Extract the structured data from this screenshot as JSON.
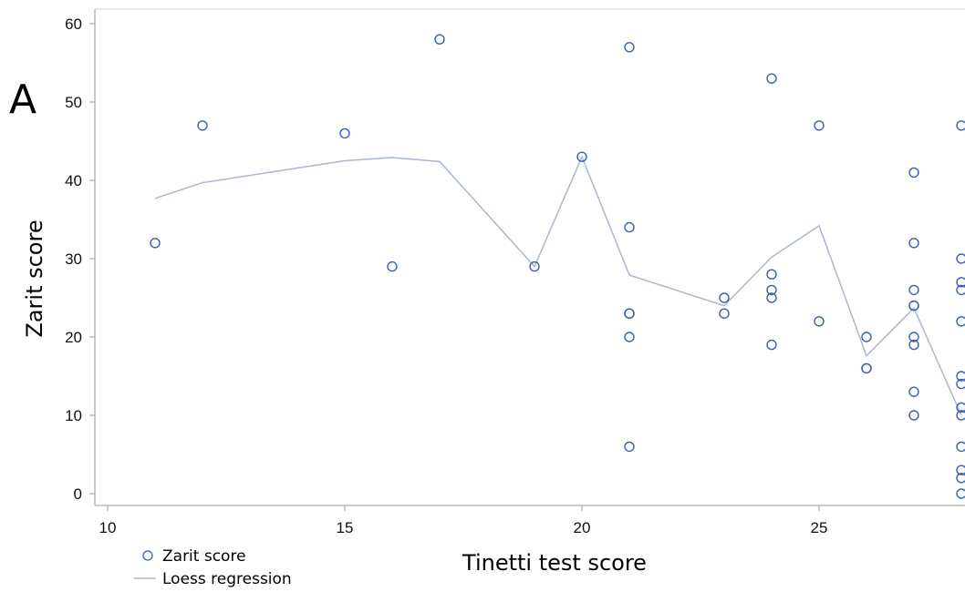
{
  "panel_label": "A",
  "legend": {
    "points_label": "Zarit score",
    "line_label": "Loess regression"
  },
  "colors": {
    "points": "#3a5fb0",
    "line": "#a9b7cf",
    "axis": "#9a9a9a"
  },
  "chart_data": {
    "type": "scatter",
    "xlabel": "Tinetti test score",
    "ylabel": "Zarit score",
    "xlim": [
      10,
      28
    ],
    "ylim": [
      0,
      60
    ],
    "xticks": [
      10,
      15,
      20,
      25
    ],
    "yticks": [
      0,
      10,
      20,
      30,
      40,
      50,
      60
    ],
    "grid": false,
    "legend_position": "bottom-left",
    "series": [
      {
        "name": "Zarit score",
        "kind": "scatter",
        "points": [
          [
            11,
            32
          ],
          [
            12,
            47
          ],
          [
            15,
            46
          ],
          [
            16,
            29
          ],
          [
            17,
            58
          ],
          [
            19,
            29
          ],
          [
            20,
            43
          ],
          [
            21,
            57
          ],
          [
            21,
            34
          ],
          [
            21,
            23
          ],
          [
            21,
            23
          ],
          [
            21,
            20
          ],
          [
            21,
            6
          ],
          [
            23,
            25
          ],
          [
            23,
            23
          ],
          [
            24,
            53
          ],
          [
            24,
            28
          ],
          [
            24,
            26
          ],
          [
            24,
            25
          ],
          [
            24,
            19
          ],
          [
            25,
            47
          ],
          [
            25,
            22
          ],
          [
            26,
            20
          ],
          [
            26,
            16
          ],
          [
            26,
            16
          ],
          [
            27,
            41
          ],
          [
            27,
            32
          ],
          [
            27,
            26
          ],
          [
            27,
            24
          ],
          [
            27,
            24
          ],
          [
            27,
            20
          ],
          [
            27,
            19
          ],
          [
            27,
            13
          ],
          [
            27,
            10
          ],
          [
            28,
            47
          ],
          [
            28,
            30
          ],
          [
            28,
            27
          ],
          [
            28,
            26
          ],
          [
            28,
            22
          ],
          [
            28,
            15
          ],
          [
            28,
            14
          ],
          [
            28,
            11
          ],
          [
            28,
            10
          ],
          [
            28,
            6
          ],
          [
            28,
            3
          ],
          [
            28,
            2
          ],
          [
            28,
            0
          ]
        ]
      },
      {
        "name": "Loess regression",
        "kind": "line",
        "points": [
          [
            11,
            37.7
          ],
          [
            12,
            39.7
          ],
          [
            15,
            42.5
          ],
          [
            16,
            42.9
          ],
          [
            17,
            42.4
          ],
          [
            19,
            29
          ],
          [
            20,
            43
          ],
          [
            21,
            27.9
          ],
          [
            23,
            24
          ],
          [
            24,
            30.2
          ],
          [
            25,
            34.2
          ],
          [
            26,
            17.6
          ],
          [
            27,
            23.7
          ],
          [
            28,
            10
          ]
        ]
      }
    ]
  }
}
